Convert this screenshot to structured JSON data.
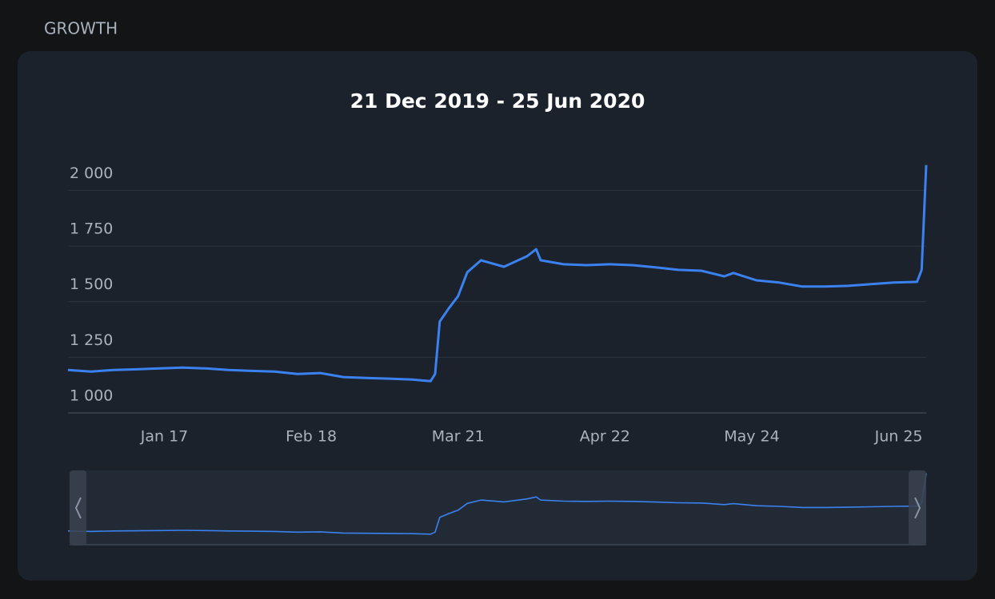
{
  "heading": "GROWTH",
  "chart_data": {
    "type": "line",
    "title": "21 Dec 2019 - 25 Jun 2020",
    "x": [
      "2019-12-27",
      "2020-01-01",
      "2020-01-06",
      "2020-01-11",
      "2020-01-16",
      "2020-01-21",
      "2020-01-26",
      "2020-01-31",
      "2020-02-05",
      "2020-02-10",
      "2020-02-15",
      "2020-02-20",
      "2020-02-25",
      "2020-03-01",
      "2020-03-06",
      "2020-03-11",
      "2020-03-15",
      "2020-03-16",
      "2020-03-17",
      "2020-03-19",
      "2020-03-21",
      "2020-03-23",
      "2020-03-26",
      "2020-03-31",
      "2020-04-05",
      "2020-04-07",
      "2020-04-08",
      "2020-04-13",
      "2020-04-18",
      "2020-04-23",
      "2020-04-28",
      "2020-05-03",
      "2020-05-08",
      "2020-05-13",
      "2020-05-18",
      "2020-05-20",
      "2020-05-25",
      "2020-05-30",
      "2020-06-04",
      "2020-06-09",
      "2020-06-14",
      "2020-06-19",
      "2020-06-24",
      "2020-06-29",
      "2020-06-30",
      "2020-07-01"
    ],
    "series": [
      {
        "color": "#3b82f0",
        "values": [
          1193,
          1186,
          1193,
          1196,
          1200,
          1204,
          1200,
          1193,
          1189,
          1186,
          1175,
          1179,
          1161,
          1157,
          1154,
          1150,
          1143,
          1175,
          1411,
          1471,
          1525,
          1632,
          1686,
          1657,
          1704,
          1736,
          1686,
          1668,
          1664,
          1668,
          1664,
          1654,
          1643,
          1639,
          1614,
          1629,
          1596,
          1586,
          1568,
          1568,
          1571,
          1579,
          1586,
          1589,
          1643,
          2114
        ]
      }
    ],
    "xlim": [
      "2019-12-27",
      "2020-07-01"
    ],
    "xticks": [
      {
        "value": "2020-01-17",
        "label": "Jan 17"
      },
      {
        "value": "2020-02-18",
        "label": "Feb 18"
      },
      {
        "value": "2020-03-21",
        "label": "Mar 21"
      },
      {
        "value": "2020-04-22",
        "label": "Apr 22"
      },
      {
        "value": "2020-05-24",
        "label": "May 24"
      },
      {
        "value": "2020-06-25",
        "label": "Jun 25"
      }
    ],
    "ylim": [
      1000,
      2120
    ],
    "yticks": [
      {
        "value": 1000,
        "label": "1 000"
      },
      {
        "value": 1250,
        "label": "1 250"
      },
      {
        "value": 1500,
        "label": "1 500"
      },
      {
        "value": 1750,
        "label": "1 750"
      },
      {
        "value": 2000,
        "label": "2 000"
      }
    ],
    "grid": true
  }
}
